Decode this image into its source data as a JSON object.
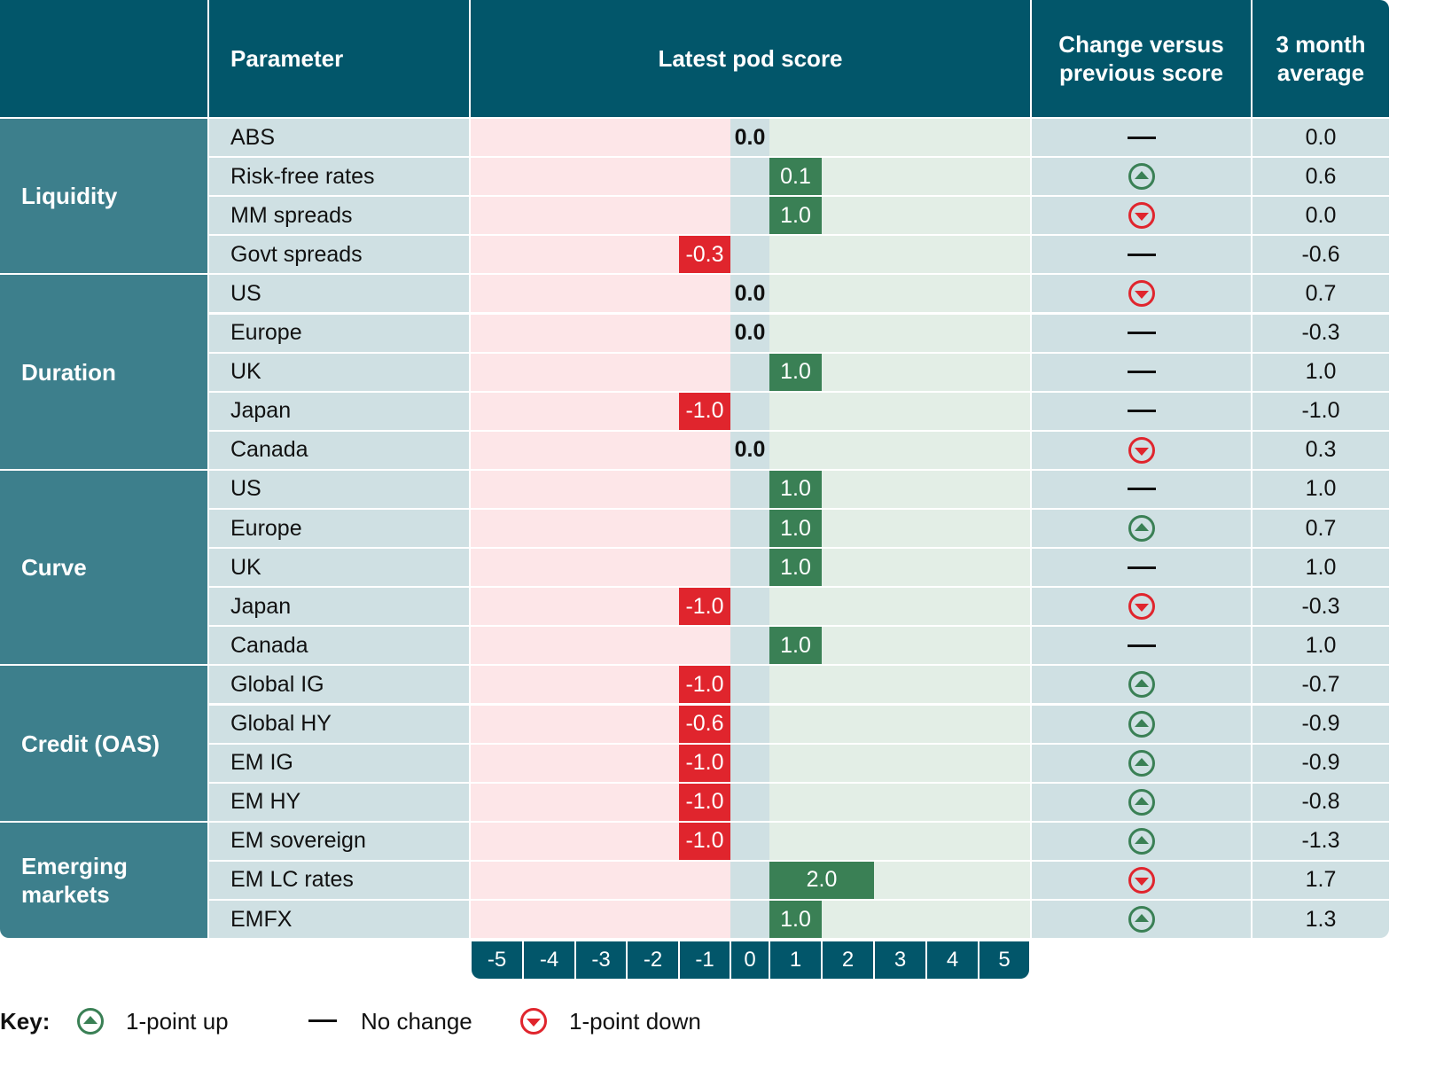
{
  "colors": {
    "header": "#02566a",
    "group": "#3d7f8c",
    "row": "#cfe0e3",
    "negative_zone": "#fde6e8",
    "positive_zone": "#e3eee6",
    "positive_bar": "#3a8055",
    "negative_bar": "#e0252d"
  },
  "headers": {
    "parameter": "Parameter",
    "score": "Latest pod score",
    "change": "Change versus previous score",
    "average": "3 month average"
  },
  "chart_data": {
    "type": "table",
    "xlim": [
      -5,
      5
    ],
    "ticks": [
      "-5",
      "-4",
      "-3",
      "-2",
      "-1",
      "0",
      "1",
      "2",
      "3",
      "4",
      "5"
    ],
    "groups": [
      {
        "name": "Liquidity",
        "rows": [
          {
            "parameter": "ABS",
            "score": "0.0",
            "value": 0.0,
            "change": "none",
            "average": "0.0"
          },
          {
            "parameter": "Risk-free rates",
            "score": "0.1",
            "value": 0.1,
            "change": "up",
            "average": "0.6"
          },
          {
            "parameter": "MM spreads",
            "score": "1.0",
            "value": 1.0,
            "change": "down",
            "average": "0.0"
          },
          {
            "parameter": "Govt spreads",
            "score": "-0.3",
            "value": -0.3,
            "change": "none",
            "average": "-0.6"
          }
        ]
      },
      {
        "name": "Duration",
        "rows": [
          {
            "parameter": "US",
            "score": "0.0",
            "value": 0.0,
            "change": "down",
            "average": "0.7"
          },
          {
            "parameter": "Europe",
            "score": "0.0",
            "value": 0.0,
            "change": "none",
            "average": "-0.3"
          },
          {
            "parameter": "UK",
            "score": "1.0",
            "value": 1.0,
            "change": "none",
            "average": "1.0"
          },
          {
            "parameter": "Japan",
            "score": "-1.0",
            "value": -1.0,
            "change": "none",
            "average": "-1.0"
          },
          {
            "parameter": "Canada",
            "score": "0.0",
            "value": 0.0,
            "change": "down",
            "average": "0.3"
          }
        ]
      },
      {
        "name": "Curve",
        "rows": [
          {
            "parameter": "US",
            "score": "1.0",
            "value": 1.0,
            "change": "none",
            "average": "1.0"
          },
          {
            "parameter": "Europe",
            "score": "1.0",
            "value": 1.0,
            "change": "up",
            "average": "0.7"
          },
          {
            "parameter": "UK",
            "score": "1.0",
            "value": 1.0,
            "change": "none",
            "average": "1.0"
          },
          {
            "parameter": "Japan",
            "score": "-1.0",
            "value": -1.0,
            "change": "down",
            "average": "-0.3"
          },
          {
            "parameter": "Canada",
            "score": "1.0",
            "value": 1.0,
            "change": "none",
            "average": "1.0"
          }
        ]
      },
      {
        "name": "Credit (OAS)",
        "rows": [
          {
            "parameter": "Global IG",
            "score": "-1.0",
            "value": -1.0,
            "change": "up",
            "average": "-0.7"
          },
          {
            "parameter": "Global HY",
            "score": "-0.6",
            "value": -0.6,
            "change": "up",
            "average": "-0.9"
          },
          {
            "parameter": "EM IG",
            "score": "-1.0",
            "value": -1.0,
            "change": "up",
            "average": "-0.9"
          },
          {
            "parameter": "EM HY",
            "score": "-1.0",
            "value": -1.0,
            "change": "up",
            "average": "-0.8"
          }
        ]
      },
      {
        "name": "Emerging markets",
        "rows": [
          {
            "parameter": "EM sovereign",
            "score": "-1.0",
            "value": -1.0,
            "change": "up",
            "average": "-1.3"
          },
          {
            "parameter": "EM LC rates",
            "score": "2.0",
            "value": 2.0,
            "change": "down",
            "average": "1.7"
          },
          {
            "parameter": "EMFX",
            "score": "1.0",
            "value": 1.0,
            "change": "up",
            "average": "1.3"
          }
        ]
      }
    ]
  },
  "key": {
    "label": "Key:",
    "up": "1-point up",
    "none": "No change",
    "down": "1-point down"
  }
}
